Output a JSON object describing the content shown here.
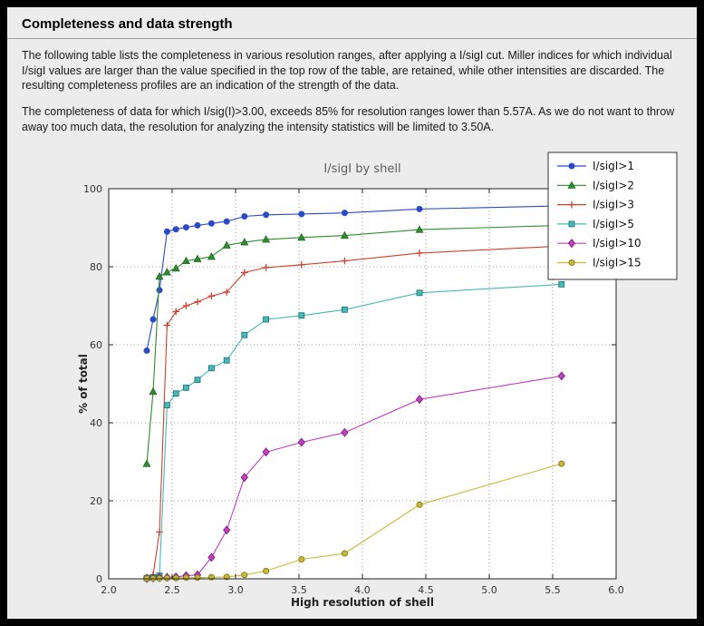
{
  "window": {
    "title": "Completeness and data strength"
  },
  "paragraphs": {
    "p1": "The following table lists the completeness in various resolution ranges, after applying a I/sigI cut. Miller indices for which individual I/sigI values are larger than the value specified in the top row of the table, are retained, while other intensities are discarded. The resulting completeness profiles are an indication of the strength of the data.",
    "p2": "The completeness of data for which I/sig(I)>3.00, exceeds  85% for resolution ranges lower than 5.57A. As we do not want to throw away too much data, the resolution for analyzing the intensity statistics will be limited to 3.50A."
  },
  "chart_data": {
    "type": "line",
    "title": "I/sigI by shell",
    "xlabel": "High resolution of shell",
    "ylabel": "% of total",
    "xlim": [
      2.0,
      6.0
    ],
    "ylim": [
      0,
      100
    ],
    "xticks": [
      2.0,
      2.5,
      3.0,
      3.5,
      4.0,
      4.5,
      5.0,
      5.5,
      6.0
    ],
    "yticks": [
      0,
      20,
      40,
      60,
      80,
      100
    ],
    "grid": true,
    "grid_style": "dotted",
    "legend_position": "upper right",
    "plot_bg": "#ffffff",
    "figure_bg": "#ececec",
    "x": [
      2.3,
      2.35,
      2.4,
      2.46,
      2.53,
      2.61,
      2.7,
      2.81,
      2.93,
      3.07,
      3.24,
      3.52,
      3.86,
      4.45,
      5.57
    ],
    "series": [
      {
        "name": "I/sigI>1",
        "color": "#2b4ac7",
        "edge": "#2b4ac7",
        "marker": "circle",
        "values": [
          58.5,
          66.5,
          74.0,
          89.0,
          89.6,
          90.1,
          90.6,
          91.1,
          91.6,
          92.9,
          93.3,
          93.5,
          93.8,
          94.8,
          95.6
        ]
      },
      {
        "name": "I/sigI>2",
        "color": "#2e8b2e",
        "edge": "#1d5c1d",
        "marker": "triangle",
        "values": [
          29.5,
          48.0,
          77.5,
          78.6,
          79.6,
          81.5,
          82.0,
          82.6,
          85.5,
          86.3,
          87.0,
          87.5,
          88.0,
          89.5,
          90.6
        ]
      },
      {
        "name": "I/sigI>3",
        "color": "#d04030",
        "edge": "#d04030",
        "marker": "plus",
        "values": [
          0.4,
          1.0,
          12.0,
          65.0,
          68.5,
          70.0,
          71.0,
          72.5,
          73.5,
          78.5,
          79.8,
          80.5,
          81.5,
          83.5,
          85.3
        ]
      },
      {
        "name": "I/sigI>5",
        "color": "#46b8b8",
        "edge": "#1e6d6d",
        "marker": "square",
        "values": [
          0.2,
          0.4,
          0.8,
          44.5,
          47.5,
          49.0,
          51.0,
          54.0,
          56.0,
          62.5,
          66.5,
          67.5,
          69.0,
          73.3,
          75.5
        ]
      },
      {
        "name": "I/sigI>10",
        "color": "#c13fc1",
        "edge": "#6e1f6e",
        "marker": "diamond",
        "values": [
          0.1,
          0.2,
          0.3,
          0.4,
          0.5,
          0.8,
          1.0,
          5.5,
          12.5,
          26.0,
          32.5,
          35.0,
          37.5,
          46.0,
          52.0
        ]
      },
      {
        "name": "I/sigI>15",
        "color": "#c9b832",
        "edge": "#7a6f1d",
        "marker": "circle",
        "values": [
          0.1,
          0.1,
          0.1,
          0.2,
          0.2,
          0.3,
          0.3,
          0.4,
          0.5,
          1.0,
          2.0,
          5.0,
          6.5,
          19.0,
          29.5
        ]
      }
    ]
  }
}
